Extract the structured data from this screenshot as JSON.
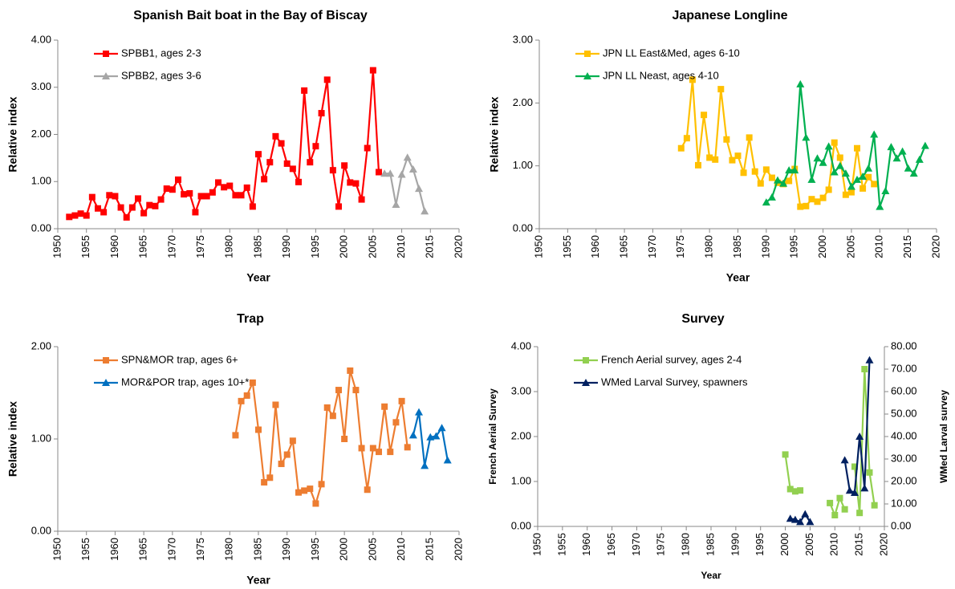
{
  "chart_data": [
    {
      "type": "line",
      "title": "Spanish Bait boat in the Bay of Biscay",
      "x_label": "Year",
      "y_label": "Relative index",
      "xlim": [
        1950,
        2020
      ],
      "xticks": [
        1950,
        1955,
        1960,
        1965,
        1970,
        1975,
        1980,
        1985,
        1990,
        1995,
        2000,
        2005,
        2010,
        2015,
        2020
      ],
      "ylim": [
        0,
        4
      ],
      "yticks": [
        {
          "value": 0,
          "label": "0.00"
        },
        {
          "value": 1,
          "label": "1.00"
        },
        {
          "value": 2,
          "label": "2.00"
        },
        {
          "value": 3,
          "label": "3.00"
        },
        {
          "value": 4,
          "label": "4.00"
        }
      ],
      "legend": "top-left",
      "series": [
        {
          "name": "SPBB1, ages 2-3",
          "color": "#ff0000",
          "marker": "square",
          "x": [
            1952,
            1953,
            1954,
            1955,
            1956,
            1957,
            1958,
            1959,
            1960,
            1961,
            1962,
            1963,
            1964,
            1965,
            1966,
            1967,
            1968,
            1969,
            1970,
            1971,
            1972,
            1973,
            1974,
            1975,
            1976,
            1977,
            1978,
            1979,
            1980,
            1981,
            1982,
            1983,
            1984,
            1985,
            1986,
            1987,
            1988,
            1989,
            1990,
            1991,
            1992,
            1993,
            1994,
            1995,
            1996,
            1997,
            1998,
            1999,
            2000,
            2001,
            2002,
            2003,
            2004,
            2005,
            2006
          ],
          "values": [
            0.25,
            0.28,
            0.32,
            0.28,
            0.67,
            0.43,
            0.35,
            0.71,
            0.69,
            0.45,
            0.24,
            0.45,
            0.64,
            0.33,
            0.5,
            0.48,
            0.62,
            0.85,
            0.83,
            1.04,
            0.73,
            0.75,
            0.35,
            0.69,
            0.69,
            0.77,
            0.98,
            0.88,
            0.91,
            0.71,
            0.71,
            0.87,
            0.47,
            1.58,
            1.05,
            1.41,
            1.96,
            1.81,
            1.38,
            1.27,
            0.99,
            2.93,
            1.41,
            1.75,
            2.45,
            3.16,
            1.24,
            0.47,
            1.34,
            0.98,
            0.96,
            0.62,
            1.71,
            3.36,
            1.2
          ]
        },
        {
          "name": "SPBB2, ages 3-6",
          "color": "#a6a6a6",
          "marker": "triangle",
          "x": [
            2007,
            2008,
            2009,
            2010,
            2011,
            2012,
            2013,
            2014
          ],
          "values": [
            1.17,
            1.17,
            0.51,
            1.15,
            1.51,
            1.26,
            0.85,
            0.37
          ]
        }
      ]
    },
    {
      "type": "line",
      "title": "Japanese Longline",
      "x_label": "Year",
      "y_label": "Relative index",
      "xlim": [
        1950,
        2020
      ],
      "xticks": [
        1950,
        1955,
        1960,
        1965,
        1970,
        1975,
        1980,
        1985,
        1990,
        1995,
        2000,
        2005,
        2010,
        2015,
        2020
      ],
      "ylim": [
        0,
        3
      ],
      "yticks": [
        {
          "value": 0,
          "label": "0.00"
        },
        {
          "value": 1,
          "label": "1.00"
        },
        {
          "value": 2,
          "label": "2.00"
        },
        {
          "value": 3,
          "label": "3.00"
        }
      ],
      "legend": "top-left",
      "series": [
        {
          "name": "JPN LL East&Med, ages 6-10",
          "color": "#ffc000",
          "marker": "square",
          "x": [
            1975,
            1976,
            1977,
            1978,
            1979,
            1980,
            1981,
            1982,
            1983,
            1984,
            1985,
            1986,
            1987,
            1988,
            1989,
            1990,
            1991,
            1992,
            1993,
            1994,
            1995,
            1996,
            1997,
            1998,
            1999,
            2000,
            2001,
            2002,
            2003,
            2004,
            2005,
            2006,
            2007,
            2008,
            2009
          ],
          "values": [
            1.28,
            1.44,
            2.37,
            1.01,
            1.81,
            1.13,
            1.1,
            2.22,
            1.42,
            1.09,
            1.16,
            0.89,
            1.45,
            0.91,
            0.72,
            0.94,
            0.81,
            0.73,
            0.71,
            0.76,
            0.95,
            0.35,
            0.36,
            0.47,
            0.43,
            0.49,
            0.62,
            1.37,
            1.13,
            0.54,
            0.58,
            1.28,
            0.64,
            0.82,
            0.71
          ]
        },
        {
          "name": "JPN LL Neast, ages 4-10",
          "color": "#00b050",
          "marker": "triangle",
          "x": [
            1990,
            1991,
            1992,
            1993,
            1994,
            1995,
            1996,
            1997,
            1998,
            1999,
            2000,
            2001,
            2002,
            2003,
            2004,
            2005,
            2006,
            2007,
            2008,
            2009,
            2010,
            2011,
            2012,
            2013,
            2014,
            2015,
            2016,
            2017,
            2018
          ],
          "values": [
            0.42,
            0.5,
            0.77,
            0.72,
            0.93,
            0.93,
            2.3,
            1.45,
            0.78,
            1.12,
            1.05,
            1.31,
            0.9,
            1.0,
            0.88,
            0.67,
            0.78,
            0.83,
            0.96,
            1.5,
            0.35,
            0.6,
            1.3,
            1.12,
            1.23,
            0.96,
            0.88,
            1.1,
            1.32
          ]
        }
      ]
    },
    {
      "type": "line",
      "title": "Trap",
      "x_label": "Year",
      "y_label": "Relative index",
      "xlim": [
        1950,
        2020
      ],
      "xticks": [
        1950,
        1955,
        1960,
        1965,
        1970,
        1975,
        1980,
        1985,
        1990,
        1995,
        2000,
        2005,
        2010,
        2015,
        2020
      ],
      "ylim": [
        0,
        2
      ],
      "yticks": [
        {
          "value": 0,
          "label": "0.00"
        },
        {
          "value": 1,
          "label": "1.00"
        },
        {
          "value": 2,
          "label": "2.00"
        }
      ],
      "legend": "top-left",
      "series": [
        {
          "name": "SPN&MOR trap, ages 6+",
          "color": "#ed7d31",
          "marker": "square",
          "x": [
            1981,
            1982,
            1983,
            1984,
            1985,
            1986,
            1987,
            1988,
            1989,
            1990,
            1991,
            1992,
            1993,
            1994,
            1995,
            1996,
            1997,
            1998,
            1999,
            2000,
            2001,
            2002,
            2003,
            2004,
            2005,
            2006,
            2007,
            2008,
            2009,
            2010,
            2011
          ],
          "values": [
            1.04,
            1.41,
            1.47,
            1.61,
            1.1,
            0.53,
            0.58,
            1.37,
            0.73,
            0.83,
            0.98,
            0.42,
            0.44,
            0.46,
            0.3,
            0.51,
            1.34,
            1.25,
            1.53,
            1.0,
            1.74,
            1.53,
            0.9,
            0.45,
            0.9,
            0.86,
            1.35,
            0.86,
            1.18,
            1.41,
            0.91
          ]
        },
        {
          "name": "MOR&POR trap, ages 10+*",
          "color": "#0070c0",
          "marker": "triangle",
          "x": [
            2012,
            2013,
            2014,
            2015,
            2016,
            2017,
            2018
          ],
          "values": [
            1.04,
            1.29,
            0.71,
            1.02,
            1.03,
            1.12,
            0.77
          ]
        }
      ]
    },
    {
      "type": "line",
      "title": "Survey",
      "x_label": "Year",
      "y_label": "French Aerial Survey",
      "y2_label": "WMed Larval survey",
      "xlim": [
        1950,
        2020
      ],
      "xticks": [
        1950,
        1955,
        1960,
        1965,
        1970,
        1975,
        1980,
        1985,
        1990,
        1995,
        2000,
        2005,
        2010,
        2015,
        2020
      ],
      "ylim": [
        0,
        4
      ],
      "yticks": [
        {
          "value": 0,
          "label": "0.00"
        },
        {
          "value": 1,
          "label": "1.00"
        },
        {
          "value": 2,
          "label": "2.00"
        },
        {
          "value": 3,
          "label": "3.00"
        },
        {
          "value": 4,
          "label": "4.00"
        }
      ],
      "y2lim": [
        0,
        80
      ],
      "y2ticks": [
        {
          "value": 0,
          "label": "0.00"
        },
        {
          "value": 10,
          "label": "10.00"
        },
        {
          "value": 20,
          "label": "20.00"
        },
        {
          "value": 30,
          "label": "30.00"
        },
        {
          "value": 40,
          "label": "40.00"
        },
        {
          "value": 50,
          "label": "50.00"
        },
        {
          "value": 60,
          "label": "60.00"
        },
        {
          "value": 70,
          "label": "70.00"
        },
        {
          "value": 80,
          "label": "80.00"
        }
      ],
      "legend": "top-left",
      "series": [
        {
          "name": "French Aerial survey, ages 2-4",
          "color": "#92d050",
          "marker": "square",
          "x": [
            2000,
            2001,
            2002,
            2003,
            2004,
            2005,
            2006,
            2007,
            2008,
            2009,
            2010,
            2011,
            2012,
            2013,
            2014,
            2015,
            2016,
            2017,
            2018
          ],
          "values": [
            1.6,
            0.83,
            0.78,
            0.8,
            null,
            null,
            null,
            null,
            null,
            0.52,
            0.25,
            0.63,
            0.38,
            null,
            1.33,
            0.3,
            3.5,
            1.2,
            0.47
          ]
        },
        {
          "name": "WMed Larval Survey, spawners",
          "color": "#002060",
          "marker": "triangle",
          "axis": "y2",
          "x": [
            2001,
            2002,
            2003,
            2004,
            2005,
            2006,
            2007,
            2008,
            2009,
            2010,
            2011,
            2012,
            2013,
            2014,
            2015,
            2016,
            2017
          ],
          "values": [
            3.5,
            3.0,
            2.0,
            5.5,
            2.0,
            null,
            null,
            null,
            null,
            null,
            null,
            29.5,
            16.0,
            15.0,
            40.0,
            17.0,
            74.0
          ]
        }
      ]
    }
  ]
}
